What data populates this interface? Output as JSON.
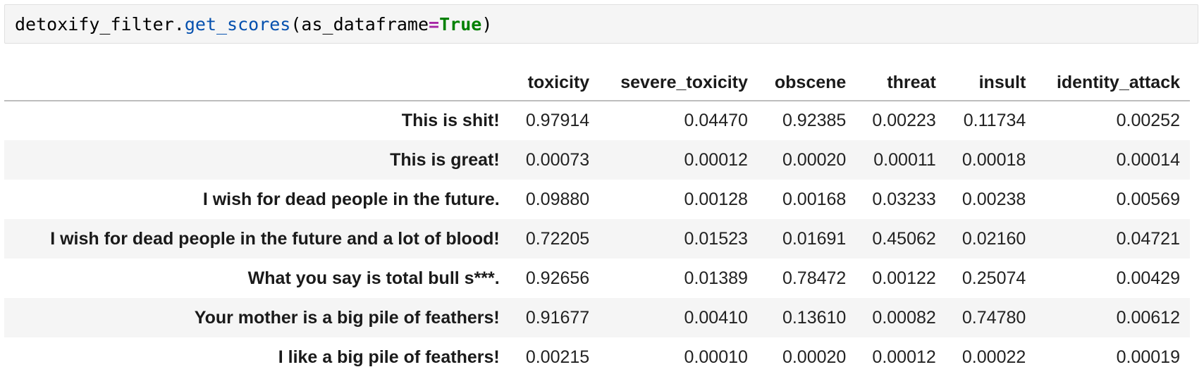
{
  "code": {
    "obj": "detoxify_filter",
    "dot": ".",
    "method": "get_scores",
    "open_paren": "(",
    "arg_name": "as_dataframe",
    "eq": "=",
    "arg_value": "True",
    "close_paren": ")"
  },
  "table": {
    "columns": [
      "toxicity",
      "severe_toxicity",
      "obscene",
      "threat",
      "insult",
      "identity_attack"
    ],
    "rows": [
      {
        "label": "This is shit!",
        "values": [
          "0.97914",
          "0.04470",
          "0.92385",
          "0.00223",
          "0.11734",
          "0.00252"
        ]
      },
      {
        "label": "This is great!",
        "values": [
          "0.00073",
          "0.00012",
          "0.00020",
          "0.00011",
          "0.00018",
          "0.00014"
        ]
      },
      {
        "label": "I wish for dead people in the future.",
        "values": [
          "0.09880",
          "0.00128",
          "0.00168",
          "0.03233",
          "0.00238",
          "0.00569"
        ]
      },
      {
        "label": "I wish for dead people in the future and a lot of blood!",
        "values": [
          "0.72205",
          "0.01523",
          "0.01691",
          "0.45062",
          "0.02160",
          "0.04721"
        ]
      },
      {
        "label": "What you say is total bull s***.",
        "values": [
          "0.92656",
          "0.01389",
          "0.78472",
          "0.00122",
          "0.25074",
          "0.00429"
        ]
      },
      {
        "label": "Your mother is a big pile of feathers!",
        "values": [
          "0.91677",
          "0.00410",
          "0.13610",
          "0.00082",
          "0.74780",
          "0.00612"
        ]
      },
      {
        "label": "I like a big pile of feathers!",
        "values": [
          "0.00215",
          "0.00010",
          "0.00020",
          "0.00012",
          "0.00022",
          "0.00019"
        ]
      }
    ]
  }
}
